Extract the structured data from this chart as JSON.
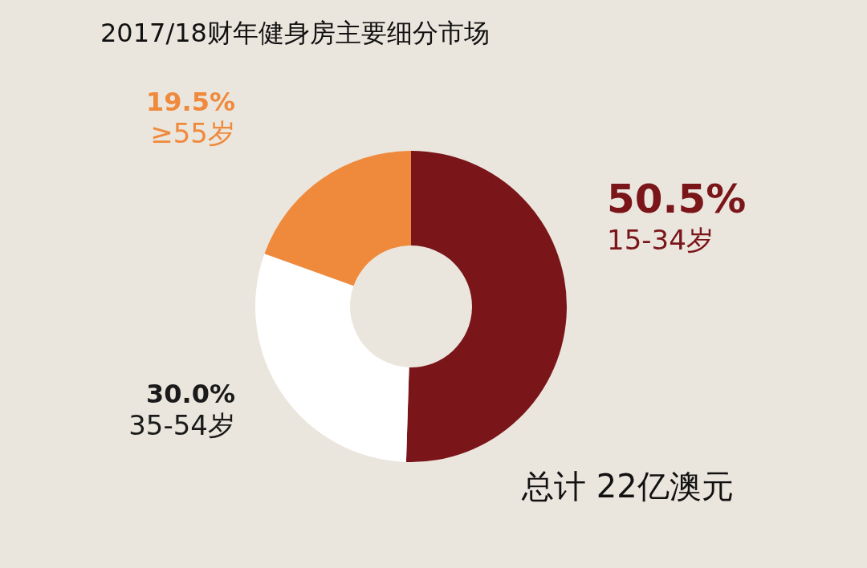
{
  "chart_data": {
    "type": "donut",
    "title": "2017/18财年健身房主要细分市场",
    "categories": [
      "15-34岁",
      "35-54岁",
      "≥55岁"
    ],
    "values": [
      50.5,
      30.0,
      19.5
    ],
    "value_labels": [
      "50.5%",
      "30.0%",
      "19.5%"
    ],
    "colors": [
      "#7a1519",
      "#ffffff",
      "#ef8a3d"
    ],
    "annotations": [
      "总计 22亿澳元"
    ]
  }
}
